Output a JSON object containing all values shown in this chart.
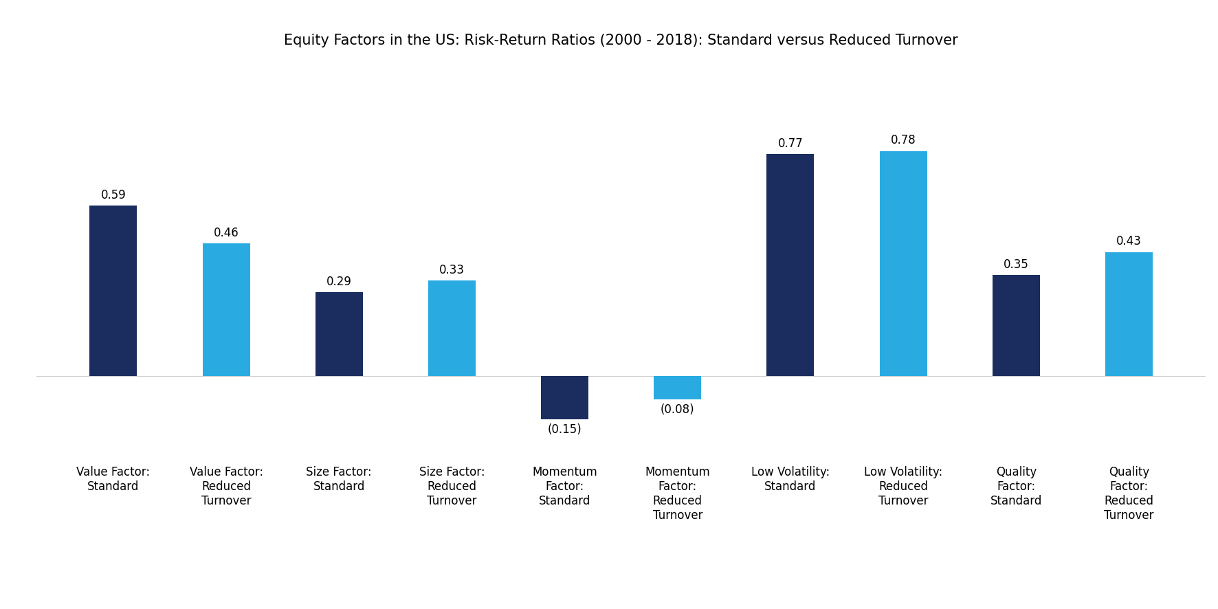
{
  "title": "Equity Factors in the US: Risk-Return Ratios (2000 - 2018): Standard versus Reduced Turnover",
  "categories": [
    "Value Factor:\nStandard",
    "Value Factor:\nReduced\nTurnover",
    "Size Factor:\nStandard",
    "Size Factor:\nReduced\nTurnover",
    "Momentum\nFactor:\nStandard",
    "Momentum\nFactor:\nReduced\nTurnover",
    "Low Volatility:\nStandard",
    "Low Volatility:\nReduced\nTurnover",
    "Quality\nFactor:\nStandard",
    "Quality\nFactor:\nReduced\nTurnover"
  ],
  "values": [
    0.59,
    0.46,
    0.29,
    0.33,
    -0.15,
    -0.08,
    0.77,
    0.78,
    0.35,
    0.43
  ],
  "colors": [
    "#1b2d5f",
    "#29abe2",
    "#1b2d5f",
    "#29abe2",
    "#1b2d5f",
    "#29abe2",
    "#1b2d5f",
    "#29abe2",
    "#1b2d5f",
    "#29abe2"
  ],
  "bar_labels": [
    "0.59",
    "0.46",
    "0.29",
    "0.33",
    "(0.15)",
    "(0.08)",
    "0.77",
    "0.78",
    "0.35",
    "0.43"
  ],
  "ylim": [
    -0.28,
    1.05
  ],
  "title_fontsize": 15,
  "label_fontsize": 12,
  "tick_fontsize": 12,
  "background_color": "#ffffff",
  "figure_width": 17.72,
  "figure_height": 8.86,
  "bar_width": 0.42
}
